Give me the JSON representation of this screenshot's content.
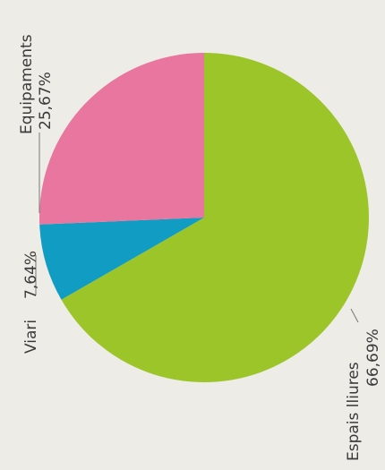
{
  "chart_data": {
    "type": "pie",
    "slices": [
      {
        "label": "Espais lliures",
        "value": 66.69,
        "value_label": "66,69%",
        "color": "#9cc529"
      },
      {
        "label": "Viari",
        "value": 7.64,
        "value_label": "7,64%",
        "color": "#119cc4"
      },
      {
        "label": "Equipaments",
        "value": 25.67,
        "value_label": "25,67%",
        "color": "#e8769f"
      }
    ],
    "start_angle_deg": 90,
    "direction": "clockwise",
    "text_rotation_deg": -90,
    "legend": "none"
  }
}
